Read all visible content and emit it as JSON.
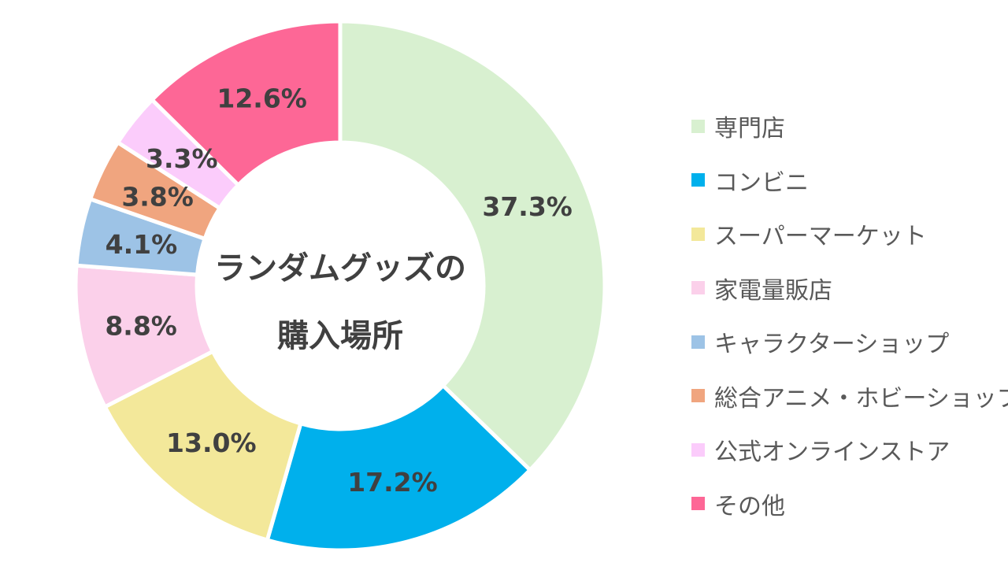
{
  "chart_data": {
    "type": "pie",
    "variant": "donut",
    "title_lines": [
      "ランダムグッズの",
      "購入場所"
    ],
    "legend_position": "right",
    "slices": [
      {
        "name": "専門店",
        "value": 37.3,
        "label": "37.3%",
        "color": "#d8f0d0"
      },
      {
        "name": "コンビニ",
        "value": 17.2,
        "label": "17.2%",
        "color": "#00b0ec"
      },
      {
        "name": "スーパーマーケット",
        "value": 13.0,
        "label": "13.0%",
        "color": "#f3e89a"
      },
      {
        "name": "家電量販店",
        "value": 8.8,
        "label": "8.8%",
        "color": "#fbd0ea"
      },
      {
        "name": "キャラクターショップ",
        "value": 4.1,
        "label": "4.1%",
        "color": "#9dc3e6"
      },
      {
        "name": "総合アニメ・ホビーショップ",
        "value": 3.8,
        "label": "3.8%",
        "color": "#f0a57f"
      },
      {
        "name": "公式オンラインストア",
        "value": 3.3,
        "label": "3.3%",
        "color": "#fbccfb"
      },
      {
        "name": "その他",
        "value": 12.6,
        "label": "12.6%",
        "color": "#fd6796"
      }
    ]
  }
}
